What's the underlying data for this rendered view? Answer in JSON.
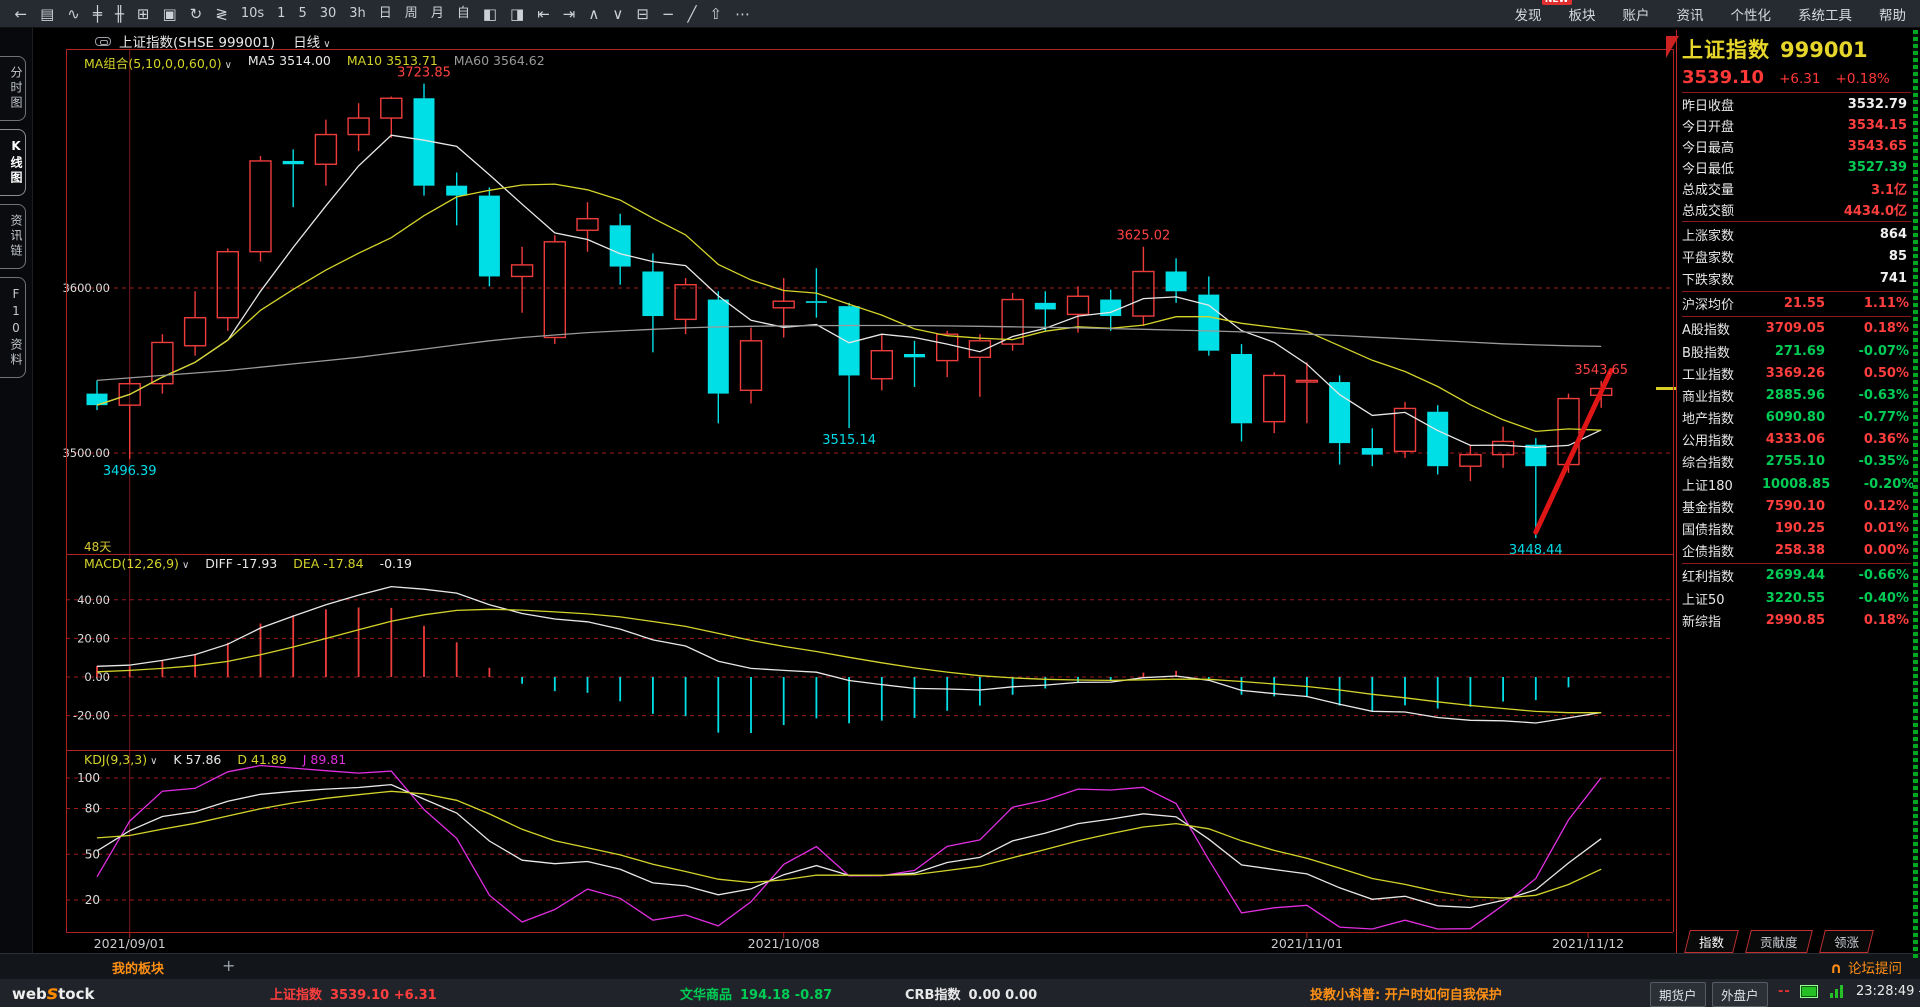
{
  "toolbar": {
    "items": [
      {
        "name": "back-icon",
        "glyph": "←"
      },
      {
        "name": "report-icon",
        "glyph": "▤"
      },
      {
        "name": "trend-line-icon",
        "glyph": "∿"
      },
      {
        "name": "kline-icon",
        "glyph": "╪"
      },
      {
        "name": "multi-kline-icon",
        "glyph": "╫"
      },
      {
        "name": "chart-grid-icon",
        "glyph": "⊞"
      },
      {
        "name": "save-icon",
        "glyph": "▣"
      },
      {
        "name": "refresh-icon",
        "glyph": "↻"
      },
      {
        "name": "overlay-icon",
        "glyph": "≷"
      },
      {
        "name": "period-10s",
        "label": "10s"
      },
      {
        "name": "period-1",
        "label": "1"
      },
      {
        "name": "period-5",
        "label": "5"
      },
      {
        "name": "period-30",
        "label": "30"
      },
      {
        "name": "period-3h",
        "label": "3h"
      },
      {
        "name": "period-day",
        "label": "日"
      },
      {
        "name": "period-week",
        "label": "周"
      },
      {
        "name": "period-month",
        "label": "月"
      },
      {
        "name": "period-custom",
        "label": "自"
      },
      {
        "name": "split-view-icon",
        "glyph": "◧"
      },
      {
        "name": "merge-view-icon",
        "glyph": "◨"
      },
      {
        "name": "page-left-icon",
        "glyph": "⇤"
      },
      {
        "name": "page-right-icon",
        "glyph": "⇥"
      },
      {
        "name": "scroll-up-icon",
        "glyph": "∧"
      },
      {
        "name": "scroll-down-icon",
        "glyph": "∨"
      },
      {
        "name": "panel-table-icon",
        "glyph": "⊟"
      },
      {
        "name": "draw-line-icon",
        "glyph": "−"
      },
      {
        "name": "draw-slash-icon",
        "glyph": "╱"
      },
      {
        "name": "publish-icon",
        "glyph": "⇧"
      },
      {
        "name": "more-icon",
        "glyph": "⋯"
      }
    ],
    "menu": [
      {
        "label": "发现",
        "badge": "NEW"
      },
      {
        "label": "板块"
      },
      {
        "label": "账户"
      },
      {
        "label": "资讯"
      },
      {
        "label": "个性化"
      },
      {
        "label": "系统工具"
      },
      {
        "label": "帮助"
      }
    ]
  },
  "sidebar": {
    "tabs": [
      {
        "label": "分时图",
        "active": false
      },
      {
        "label": "K线图",
        "active": true
      },
      {
        "label": "资讯链",
        "active": false
      },
      {
        "label": "F10资料",
        "active": false
      }
    ]
  },
  "chart": {
    "title": "上证指数(SHSE 999001)",
    "period_label": "日线",
    "note_days": "48天",
    "ma": {
      "label": "MA组合(5,10,0,0,60,0)",
      "ma5": "MA5 3514.00",
      "ma10": "MA10 3513.71",
      "ma60": "MA60 3564.62"
    },
    "macd": {
      "label": "MACD(12,26,9)",
      "diff": "DIFF -17.93",
      "dea": "DEA -17.84",
      "bar": "-0.19"
    },
    "kdj": {
      "label": "KDJ(9,3,3)",
      "k": "K 57.86",
      "d": "D 41.89",
      "j": "J 89.81"
    }
  },
  "chart_data": {
    "type": "candlestick",
    "symbol": "上证指数",
    "code": "999001",
    "period": "日线",
    "y_axis_ticks": [
      {
        "v": 3600,
        "text": "3600.00"
      },
      {
        "v": 3500,
        "text": "3500.00"
      }
    ],
    "macd_axis_ticks": [
      {
        "v": 40,
        "text": "40.00"
      },
      {
        "v": 20,
        "text": "20.00"
      },
      {
        "v": 0,
        "text": "0.00"
      },
      {
        "v": -20,
        "text": "-20.00"
      }
    ],
    "kdj_axis_ticks": [
      {
        "v": 100,
        "text": "100"
      },
      {
        "v": 80,
        "text": "80"
      },
      {
        "v": 50,
        "text": "50"
      },
      {
        "v": 20,
        "text": "20"
      }
    ],
    "dates": [
      "2021-08-31",
      "2021-09-01",
      "2021-09-02",
      "2021-09-03",
      "2021-09-06",
      "2021-09-07",
      "2021-09-08",
      "2021-09-09",
      "2021-09-10",
      "2021-09-13",
      "2021-09-14",
      "2021-09-15",
      "2021-09-16",
      "2021-09-17",
      "2021-09-22",
      "2021-09-23",
      "2021-09-24",
      "2021-09-27",
      "2021-09-28",
      "2021-09-29",
      "2021-09-30",
      "2021-10-08",
      "2021-10-11",
      "2021-10-12",
      "2021-10-13",
      "2021-10-14",
      "2021-10-15",
      "2021-10-18",
      "2021-10-19",
      "2021-10-20",
      "2021-10-21",
      "2021-10-22",
      "2021-10-25",
      "2021-10-26",
      "2021-10-27",
      "2021-10-28",
      "2021-10-29",
      "2021-11-01",
      "2021-11-02",
      "2021-11-03",
      "2021-11-04",
      "2021-11-05",
      "2021-11-08",
      "2021-11-09",
      "2021-11-10",
      "2021-11-11",
      "2021-11-12"
    ],
    "ohlc": [
      [
        3536,
        3544,
        3526,
        3529
      ],
      [
        3529,
        3546,
        3496.39,
        3542
      ],
      [
        3542,
        3572,
        3536,
        3567
      ],
      [
        3565,
        3598,
        3559,
        3582
      ],
      [
        3582,
        3624,
        3574,
        3622
      ],
      [
        3622,
        3680,
        3616,
        3677
      ],
      [
        3677,
        3684,
        3649,
        3675
      ],
      [
        3675,
        3702,
        3662,
        3693
      ],
      [
        3693,
        3712,
        3683,
        3703
      ],
      [
        3703,
        3716,
        3691,
        3715
      ],
      [
        3715,
        3723.85,
        3656,
        3662
      ],
      [
        3662,
        3670,
        3638,
        3656
      ],
      [
        3656,
        3661,
        3601,
        3607
      ],
      [
        3607,
        3625,
        3585,
        3614
      ],
      [
        3570,
        3632,
        3566,
        3628
      ],
      [
        3635,
        3652,
        3622,
        3642
      ],
      [
        3638,
        3645,
        3602,
        3613
      ],
      [
        3610,
        3621,
        3561,
        3583
      ],
      [
        3581,
        3606,
        3572,
        3602
      ],
      [
        3593,
        3598,
        3518,
        3536
      ],
      [
        3538,
        3576,
        3530,
        3568
      ],
      [
        3588,
        3606,
        3570,
        3592
      ],
      [
        3592,
        3612,
        3582,
        3591
      ],
      [
        3589,
        3591,
        3515.14,
        3547
      ],
      [
        3545,
        3572,
        3538,
        3562
      ],
      [
        3560,
        3568,
        3540,
        3558
      ],
      [
        3556,
        3574,
        3546,
        3572
      ],
      [
        3558,
        3572,
        3534,
        3568
      ],
      [
        3566,
        3597,
        3562,
        3593
      ],
      [
        3591,
        3598,
        3574,
        3587
      ],
      [
        3584,
        3601,
        3573,
        3595
      ],
      [
        3593,
        3599,
        3574,
        3583
      ],
      [
        3583,
        3625.02,
        3577,
        3610
      ],
      [
        3610,
        3618,
        3591,
        3598
      ],
      [
        3596,
        3607,
        3559,
        3562
      ],
      [
        3560,
        3566,
        3507,
        3518
      ],
      [
        3519,
        3549,
        3512,
        3547
      ],
      [
        3543,
        3555,
        3518,
        3544
      ],
      [
        3543,
        3547,
        3493,
        3506
      ],
      [
        3503,
        3515,
        3492,
        3499
      ],
      [
        3501,
        3531,
        3497,
        3527
      ],
      [
        3525,
        3529,
        3487,
        3492
      ],
      [
        3492,
        3505,
        3483,
        3499
      ],
      [
        3499,
        3516,
        3491,
        3507
      ],
      [
        3505,
        3509,
        3448.44,
        3492
      ],
      [
        3493,
        3536,
        3488,
        3533
      ],
      [
        3535,
        3543.65,
        3527.39,
        3539.1
      ]
    ],
    "ma60": [
      3544,
      3545.5,
      3547,
      3548.5,
      3550,
      3552,
      3554,
      3556,
      3558,
      3560.5,
      3563,
      3565.5,
      3568,
      3570,
      3571.5,
      3573,
      3574,
      3575,
      3575.8,
      3576.4,
      3576.8,
      3577,
      3577.2,
      3577.3,
      3577.3,
      3577.2,
      3577,
      3576.8,
      3576.5,
      3576.2,
      3575.8,
      3575.4,
      3575,
      3574.5,
      3574,
      3573.4,
      3572.8,
      3572,
      3571.2,
      3570.2,
      3569.2,
      3568.2,
      3567.2,
      3566.2,
      3565.5,
      3565,
      3564.62
    ],
    "x_axis_labels": [
      {
        "index": 1,
        "text": "2021/09/01"
      },
      {
        "index": 21,
        "text": "2021/10/08"
      },
      {
        "index": 37,
        "text": "2021/11/01"
      },
      {
        "index": 45.6,
        "text": "2021/11/12"
      }
    ],
    "annotations": [
      {
        "index": 1,
        "value": 3496.39,
        "text": "3496.39",
        "pos": "below",
        "color": "#00dde8"
      },
      {
        "index": 10,
        "value": 3723.85,
        "text": "3723.85",
        "pos": "above",
        "color": "#ff4242"
      },
      {
        "index": 23,
        "value": 3515.14,
        "text": "3515.14",
        "pos": "below",
        "color": "#00dde8"
      },
      {
        "index": 32,
        "value": 3625.02,
        "text": "3625.02",
        "pos": "above",
        "color": "#ff4242"
      },
      {
        "index": 44,
        "value": 3448.44,
        "text": "3448.44",
        "pos": "below",
        "color": "#00dde8"
      },
      {
        "index": 46,
        "value": 3543.65,
        "text": "3543.65",
        "pos": "above",
        "color": "#ff4242"
      }
    ],
    "trendline": {
      "x1_index": 44,
      "v1": 3452,
      "x2_index": 46.3,
      "v2": 3550,
      "color": "#e01515"
    },
    "price_marker": {
      "value": 3539.1,
      "color": "#d9ce25"
    },
    "indicators": {
      "ma": [
        5,
        10,
        60
      ],
      "macd": [
        12,
        26,
        9
      ],
      "kdj": [
        9,
        3,
        3
      ]
    },
    "colors": {
      "up": "#ee3c3c",
      "down": "#00dfe6",
      "grid": "#9b1c1c",
      "border": "#b02222",
      "ma5": "#e8e8e8",
      "ma10": "#d3d32b",
      "ma60": "#9a9a9a",
      "diff": "#e8e8e8",
      "dea": "#d3d32b",
      "k": "#e8e8e8",
      "d": "#d3d32b",
      "j": "#e02ee0"
    }
  },
  "right_panel": {
    "title": "上证指数",
    "code": "999001",
    "price": "3539.10",
    "change": "+6.31",
    "change_pct": "+0.18%",
    "summary": [
      {
        "label": "昨日收盘",
        "value": "3532.79",
        "c": "w"
      },
      {
        "label": "今日开盘",
        "value": "3534.15",
        "c": "r"
      },
      {
        "label": "今日最高",
        "value": "3543.65",
        "c": "r"
      },
      {
        "label": "今日最低",
        "value": "3527.39",
        "c": "g"
      },
      {
        "label": "总成交量",
        "value": "3.1亿",
        "c": "r"
      },
      {
        "label": "总成交额",
        "value": "4434.0亿",
        "c": "r"
      }
    ],
    "counts": [
      {
        "label": "上涨家数",
        "value": "864",
        "c": "w"
      },
      {
        "label": "平盘家数",
        "value": "85",
        "c": "w"
      },
      {
        "label": "下跌家数",
        "value": "741",
        "c": "w"
      }
    ],
    "average": {
      "label": "沪深均价",
      "value": "21.55",
      "pct": "1.11%",
      "c": "r"
    },
    "indices": [
      {
        "label": "A股指数",
        "value": "3709.05",
        "pct": "0.18%",
        "c": "r"
      },
      {
        "label": "B股指数",
        "value": "271.69",
        "pct": "-0.07%",
        "c": "g"
      },
      {
        "label": "工业指数",
        "value": "3369.26",
        "pct": "0.50%",
        "c": "r"
      },
      {
        "label": "商业指数",
        "value": "2885.96",
        "pct": "-0.63%",
        "c": "g"
      },
      {
        "label": "地产指数",
        "value": "6090.80",
        "pct": "-0.77%",
        "c": "g"
      },
      {
        "label": "公用指数",
        "value": "4333.06",
        "pct": "0.36%",
        "c": "r"
      },
      {
        "label": "综合指数",
        "value": "2755.10",
        "pct": "-0.35%",
        "c": "g"
      },
      {
        "label": "上证180",
        "value": "10008.85",
        "pct": "-0.20%",
        "c": "g"
      },
      {
        "label": "基金指数",
        "value": "7590.10",
        "pct": "0.12%",
        "c": "r"
      },
      {
        "label": "国债指数",
        "value": "190.25",
        "pct": "0.01%",
        "c": "r"
      },
      {
        "label": "企债指数",
        "value": "258.38",
        "pct": "0.00%",
        "c": "r"
      }
    ],
    "indices2": [
      {
        "label": "红利指数",
        "value": "2699.44",
        "pct": "-0.66%",
        "c": "g"
      },
      {
        "label": "上证50",
        "value": "3220.55",
        "pct": "-0.40%",
        "c": "g"
      },
      {
        "label": "新综指",
        "value": "2990.85",
        "pct": "0.18%",
        "c": "r"
      }
    ],
    "tabs": [
      {
        "label": "指数",
        "active": true
      },
      {
        "label": "贡献度",
        "active": false
      },
      {
        "label": "领涨",
        "active": false
      }
    ]
  },
  "bottom": {
    "my_tab": "我的板块",
    "add_tab": "+",
    "forum": "论坛提问",
    "logo": {
      "pre": "web",
      "mid": "s",
      "post": "tock"
    },
    "quotes": [
      {
        "name": "上证指数",
        "price": "3539.10",
        "chg": "+6.31",
        "c": "r"
      },
      {
        "name": "文华商品",
        "price": "194.18",
        "chg": "-0.87",
        "c": "g"
      },
      {
        "name": "CRB指数",
        "price": "0.00",
        "chg": "0.00",
        "c": "w"
      }
    ],
    "tip": "投教小科普: 开户时如何自我保护",
    "buttons": [
      "期货户",
      "外盘户"
    ],
    "dash": "--",
    "clock": "23:28:49 - wh"
  }
}
